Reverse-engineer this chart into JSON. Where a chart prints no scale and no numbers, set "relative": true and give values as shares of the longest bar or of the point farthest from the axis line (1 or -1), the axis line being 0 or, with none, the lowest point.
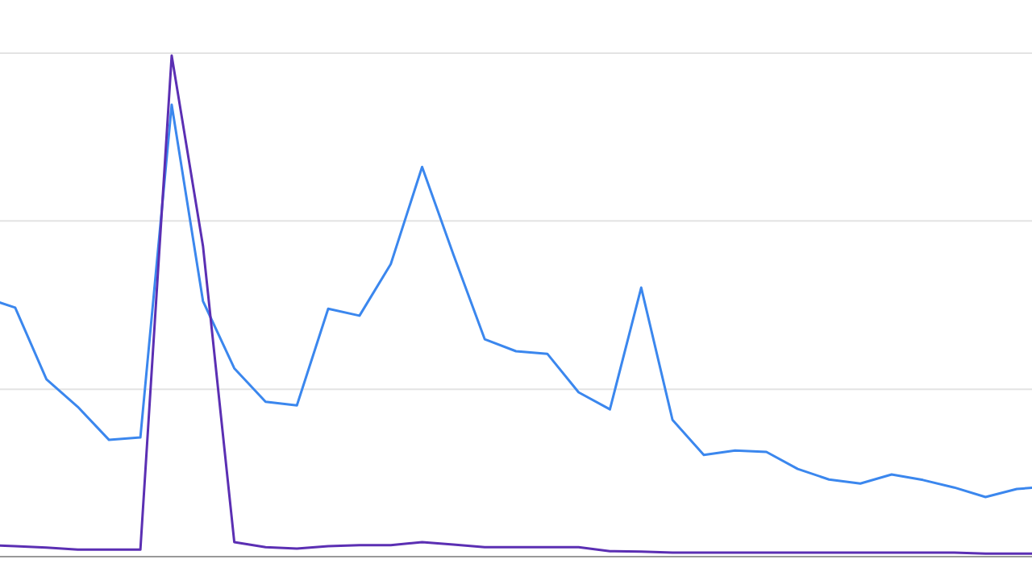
{
  "chart_data": {
    "type": "line",
    "relative": true,
    "marker": "none",
    "line_style": "solid",
    "ref_lines": [
      {
        "axis": "y",
        "value": 0.334,
        "color": "#e3e3e3"
      },
      {
        "axis": "y",
        "value": 0.67,
        "color": "#e3e3e3"
      },
      {
        "axis": "y",
        "value": 1.005,
        "color": "#e3e3e3"
      }
    ],
    "categories": [
      null,
      null,
      null,
      null,
      null,
      null,
      null,
      null,
      null,
      null,
      null,
      null,
      null,
      null,
      null,
      null,
      null,
      null,
      null,
      null,
      null,
      null,
      null,
      null,
      null,
      null,
      null,
      null,
      null,
      null,
      null,
      null,
      null,
      null,
      null
    ],
    "series": [
      {
        "color": "#3b87ee",
        "values": [
          0.518,
          0.497,
          0.354,
          0.299,
          0.233,
          0.238,
          0.902,
          0.51,
          0.376,
          0.309,
          0.302,
          0.495,
          0.481,
          0.584,
          0.778,
          0.603,
          0.434,
          0.41,
          0.405,
          0.328,
          0.294,
          0.537,
          0.273,
          0.203,
          0.212,
          0.209,
          0.175,
          0.154,
          0.146,
          0.164,
          0.153,
          0.138,
          0.119,
          0.135,
          0.14
        ]
      },
      {
        "color": "#5b2fb3",
        "values": [
          0.023,
          0.021,
          0.018,
          0.014,
          0.014,
          0.014,
          1,
          0.62,
          0.029,
          0.019,
          0.016,
          0.021,
          0.023,
          0.023,
          0.029,
          0.024,
          0.019,
          0.019,
          0.019,
          0.019,
          0.011,
          0.01,
          0.008,
          0.008,
          0.008,
          0.008,
          0.008,
          0.008,
          0.008,
          0.008,
          0.008,
          0.008,
          0.006,
          0.006,
          0.006
        ]
      }
    ]
  }
}
